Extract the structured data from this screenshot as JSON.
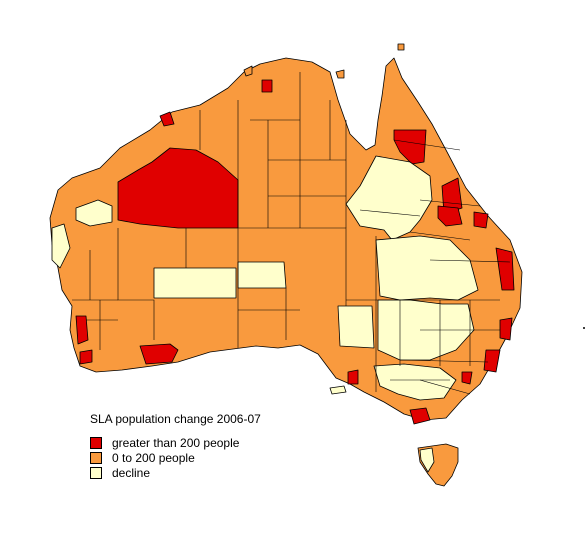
{
  "legend": {
    "title": "SLA population change 2006-07",
    "items": [
      {
        "key": "high",
        "label": "greater than 200 people",
        "color": "#e00000"
      },
      {
        "key": "mid",
        "label": "0 to 200 people",
        "color": "#f99a3e"
      },
      {
        "key": "low",
        "label": "decline",
        "color": "#ffffcc"
      }
    ]
  },
  "map": {
    "background": "#ffffff",
    "border_color": "#000000"
  }
}
